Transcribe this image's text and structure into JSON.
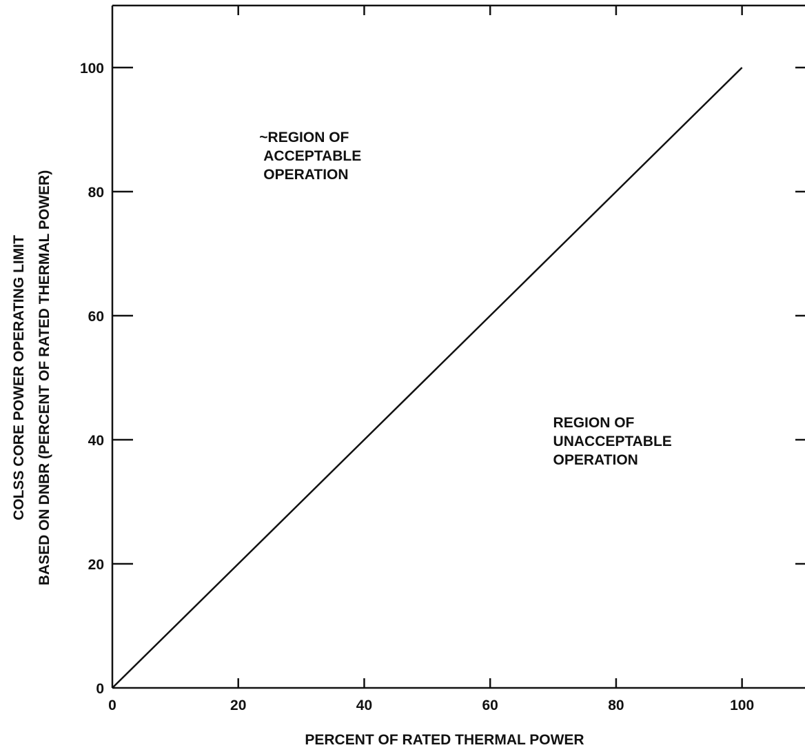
{
  "chart_data": {
    "type": "line",
    "xlabel": "PERCENT OF RATED THERMAL POWER",
    "ylabel_line1": "COLSS CORE POWER OPERATING LIMIT",
    "ylabel_line2": "BASED ON DNBR (PERCENT OF RATED THERMAL POWER)",
    "xlim": [
      0,
      110
    ],
    "ylim": [
      0,
      110
    ],
    "x_ticks": [
      0,
      20,
      40,
      60,
      80,
      100
    ],
    "y_ticks": [
      0,
      20,
      40,
      60,
      80,
      100
    ],
    "x_tick_labels": [
      "0",
      "20",
      "40",
      "60",
      "80",
      "100"
    ],
    "y_tick_labels": [
      "0",
      "20",
      "40",
      "60",
      "80",
      "100"
    ],
    "grid": false,
    "series": [
      {
        "x": [
          0,
          100
        ],
        "y": [
          0,
          100
        ]
      }
    ],
    "annotations": [
      {
        "lines": [
          "~REGION OF",
          "ACCEPTABLE",
          "OPERATION"
        ],
        "x": 24,
        "y": 88
      },
      {
        "lines": [
          "REGION OF",
          "UNACCEPTABLE",
          "OPERATION"
        ],
        "x": 70,
        "y": 42
      }
    ]
  }
}
